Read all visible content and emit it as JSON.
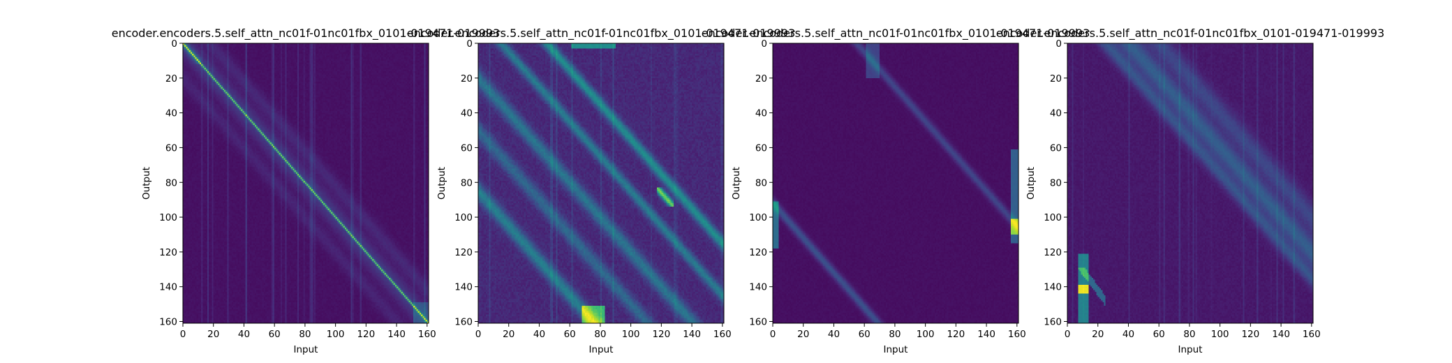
{
  "chart_data": [
    {
      "type": "heatmap",
      "title": "encoder.encoders.5.self_attn_nc01f-01nc01fbx_0101-019471-019993",
      "xlabel": "Input",
      "ylabel": "Output",
      "size": 161,
      "xlim": [
        0,
        161
      ],
      "ylim": [
        161,
        0
      ],
      "xticks": [
        0,
        20,
        40,
        60,
        80,
        100,
        120,
        140,
        160
      ],
      "yticks": [
        0,
        20,
        40,
        60,
        80,
        100,
        120,
        140,
        160
      ],
      "colormap": "viridis",
      "pattern": "strong main diagonal with scattered off-diagonal stripes and vertical columns"
    },
    {
      "type": "heatmap",
      "title": "encoder.encoders.5.self_attn_nc01f-01nc01fbx_0101-019471-019993",
      "xlabel": "Input",
      "ylabel": "Output",
      "size": 161,
      "xlim": [
        0,
        161
      ],
      "ylim": [
        161,
        0
      ],
      "xticks": [
        0,
        20,
        40,
        60,
        80,
        100,
        120,
        140,
        160
      ],
      "yticks": [
        0,
        20,
        40,
        60,
        80,
        100,
        120,
        140,
        160
      ],
      "colormap": "viridis",
      "pattern": "multiple bright parallel diagonal bands offset from the main diagonal"
    },
    {
      "type": "heatmap",
      "title": "encoder.encoders.5.self_attn_nc01f-01nc01fbx_0101-019471-019993",
      "xlabel": "Input",
      "ylabel": "Output",
      "size": 161,
      "xlim": [
        0,
        161
      ],
      "ylim": [
        161,
        0
      ],
      "xticks": [
        0,
        20,
        40,
        60,
        80,
        100,
        120,
        140,
        160
      ],
      "yticks": [
        0,
        20,
        40,
        60,
        80,
        100,
        120,
        140,
        160
      ],
      "colormap": "viridis",
      "pattern": "mostly dark with faint shifted diagonal bands and a bright spot near the right edge"
    },
    {
      "type": "heatmap",
      "title": "encoder.encoders.5.self_attn_nc01f-01nc01fbx_0101-019471-019993",
      "xlabel": "Input",
      "ylabel": "Output",
      "size": 161,
      "xlim": [
        0,
        161
      ],
      "ylim": [
        161,
        0
      ],
      "xticks": [
        0,
        20,
        40,
        60,
        80,
        100,
        120,
        140,
        160
      ],
      "yticks": [
        0,
        20,
        40,
        60,
        80,
        100,
        120,
        140,
        160
      ],
      "colormap": "viridis",
      "pattern": "broad diagonal band with a bright column near input 10"
    }
  ]
}
